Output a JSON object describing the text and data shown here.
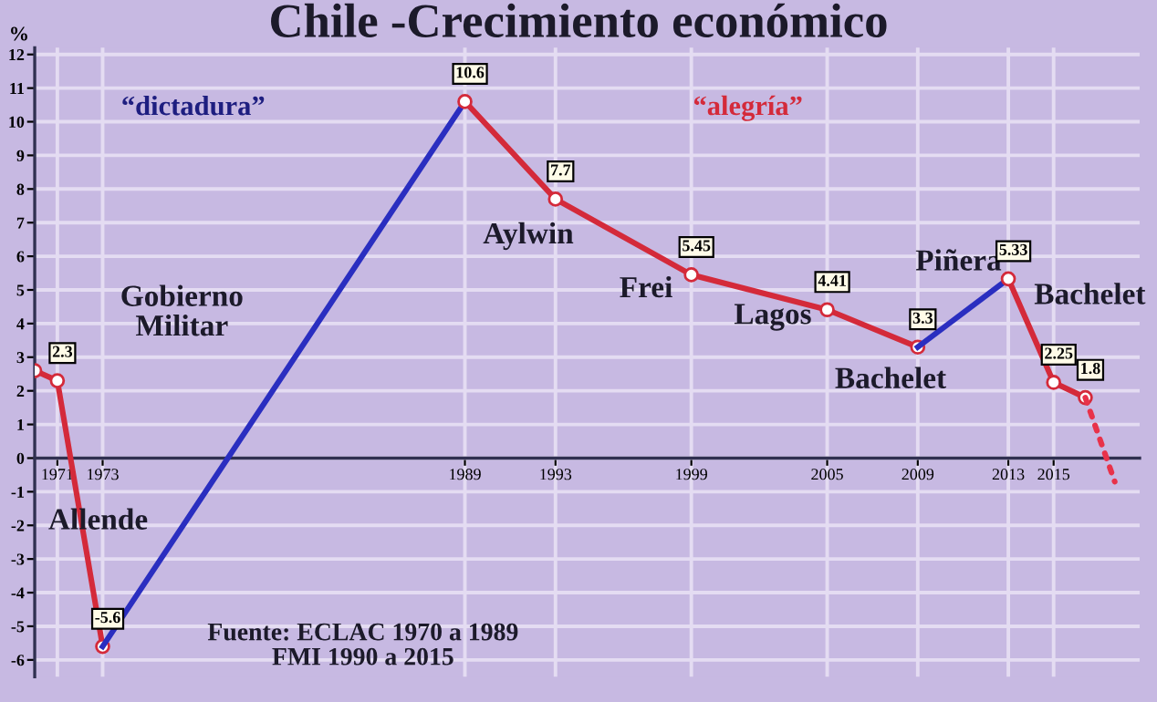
{
  "chart_data": {
    "type": "line",
    "title": "Chile -Crecimiento económico",
    "ylabel": "%",
    "xlim": [
      1970,
      2018.8
    ],
    "xticks": [
      1971,
      1973,
      1989,
      1993,
      1999,
      2005,
      2009,
      2013,
      2015
    ],
    "ylim": [
      -6.5,
      12.2
    ],
    "yticks": [
      -6,
      -5,
      -4,
      -3,
      -2,
      -1,
      0,
      1,
      2,
      3,
      4,
      5,
      6,
      7,
      8,
      9,
      10,
      11,
      12
    ],
    "grid": true,
    "legend": false,
    "series": [
      {
        "color": "#d42a3a",
        "x": [
          1970,
          1971,
          1973
        ],
        "values": [
          2.6,
          2.3,
          -5.6
        ],
        "value_labels": [
          null,
          "2.3",
          "-5.6"
        ],
        "marker": "circle",
        "line_style": "solid"
      },
      {
        "color": "#2a2ec0",
        "x": [
          1973,
          1989
        ],
        "values": [
          -5.6,
          10.6
        ],
        "marker": "none",
        "line_style": "solid"
      },
      {
        "color": "#d42a3a",
        "x": [
          1989,
          1993,
          1999,
          2005,
          2009
        ],
        "values": [
          10.6,
          7.7,
          5.45,
          4.41,
          3.3
        ],
        "value_labels": [
          "10.6",
          "7.7",
          "5.45",
          "4.41",
          "3.3"
        ],
        "marker": "circle",
        "line_style": "solid"
      },
      {
        "color": "#2a2ec0",
        "x": [
          2009,
          2013
        ],
        "values": [
          3.3,
          5.33
        ],
        "marker": "none",
        "line_style": "solid"
      },
      {
        "color": "#d42a3a",
        "x": [
          2013,
          2015,
          2016.4
        ],
        "values": [
          5.33,
          2.25,
          1.8
        ],
        "value_labels": [
          "5.33",
          "2.25",
          "1.8"
        ],
        "marker": "circle",
        "line_style": "solid"
      },
      {
        "color": "#e8324a",
        "x": [
          2016.4,
          2017.7
        ],
        "values": [
          1.8,
          -0.7
        ],
        "marker": "none",
        "line_style": "dotted"
      }
    ],
    "annotations": [
      "“dictadura”",
      "“alegría”",
      "Allende",
      "Gobierno\nMilitar",
      "Aylwin",
      "Frei",
      "Lagos",
      "Bachelet",
      "Piñera",
      "Bachelet",
      "Fuente: ECLAC 1970 a 1989\nFMI 1990 a 2015"
    ]
  }
}
